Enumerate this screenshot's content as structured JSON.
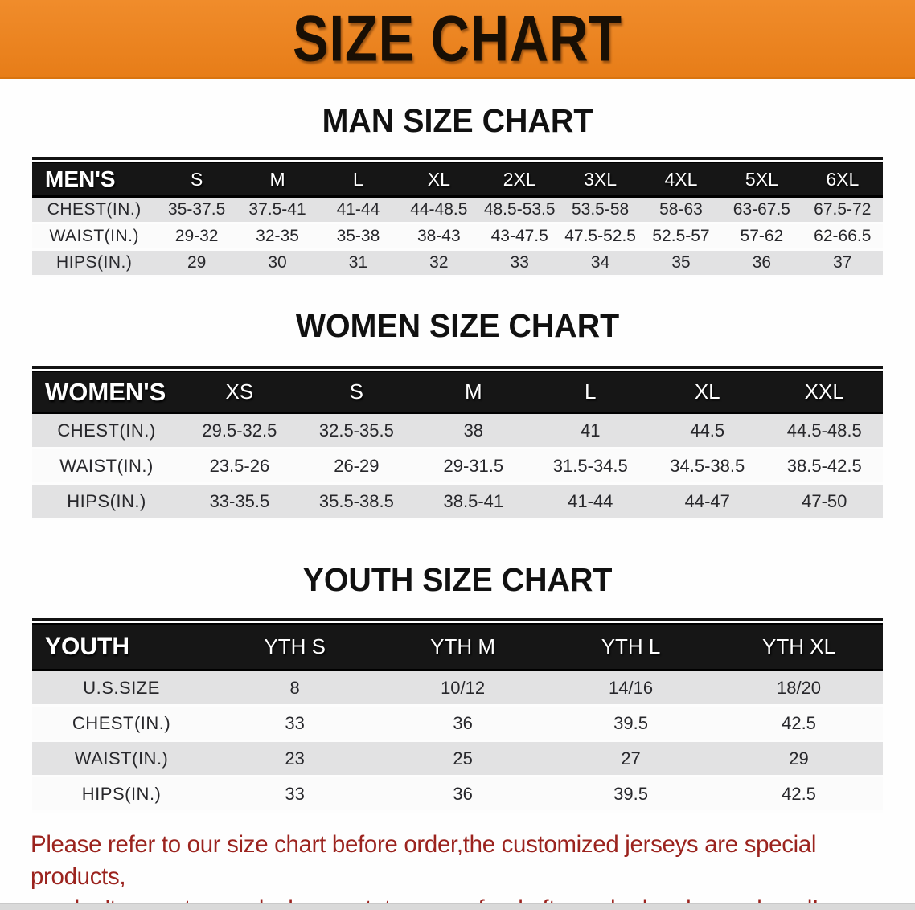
{
  "banner": {
    "title": "SIZE CHART",
    "bg_color": "#E8821E",
    "text_color": "#190F04"
  },
  "sections": [
    {
      "heading": "MAN SIZE CHART",
      "table": {
        "header_label": "MEN'S",
        "columns": [
          "S",
          "M",
          "L",
          "XL",
          "2XL",
          "3XL",
          "4XL",
          "5XL",
          "6XL"
        ],
        "rows": [
          {
            "label": "CHEST(IN.)",
            "values": [
              "35-37.5",
              "37.5-41",
              "41-44",
              "44-48.5",
              "48.5-53.5",
              "53.5-58",
              "58-63",
              "63-67.5",
              "67.5-72"
            ]
          },
          {
            "label": "WAIST(IN.)",
            "values": [
              "29-32",
              "32-35",
              "35-38",
              "38-43",
              "43-47.5",
              "47.5-52.5",
              "52.5-57",
              "57-62",
              "62-66.5"
            ]
          },
          {
            "label": "HIPS(IN.)",
            "values": [
              "29",
              "30",
              "31",
              "32",
              "33",
              "34",
              "35",
              "36",
              "37"
            ]
          }
        ]
      }
    },
    {
      "heading": "WOMEN SIZE CHART",
      "table": {
        "header_label": "WOMEN'S",
        "columns": [
          "XS",
          "S",
          "M",
          "L",
          "XL",
          "XXL"
        ],
        "rows": [
          {
            "label": "CHEST(IN.)",
            "values": [
              "29.5-32.5",
              "32.5-35.5",
              "38",
              "41",
              "44.5",
              "44.5-48.5"
            ]
          },
          {
            "label": "WAIST(IN.)",
            "values": [
              "23.5-26",
              "26-29",
              "29-31.5",
              "31.5-34.5",
              "34.5-38.5",
              "38.5-42.5"
            ]
          },
          {
            "label": "HIPS(IN.)",
            "values": [
              "33-35.5",
              "35.5-38.5",
              "38.5-41",
              "41-44",
              "44-47",
              "47-50"
            ]
          }
        ]
      }
    },
    {
      "heading": "YOUTH SIZE CHART",
      "table": {
        "header_label": "YOUTH",
        "columns": [
          "YTH S",
          "YTH M",
          "YTH L",
          "YTH XL"
        ],
        "rows": [
          {
            "label": "U.S.SIZE",
            "values": [
              "8",
              "10/12",
              "14/16",
              "18/20"
            ]
          },
          {
            "label": "CHEST(IN.)",
            "values": [
              "33",
              "36",
              "39.5",
              "42.5"
            ]
          },
          {
            "label": "WAIST(IN.)",
            "values": [
              "23",
              "25",
              "27",
              "29"
            ]
          },
          {
            "label": "HIPS(IN.)",
            "values": [
              "33",
              "36",
              "39.5",
              "42.5"
            ]
          }
        ]
      }
    }
  ],
  "footer": {
    "line1": "Please refer to our size chart before order,the customized jerseys are special products,",
    "line2": "we don't accept cancel, change, teturn or refund after order has been placed!",
    "text_color": "#9B231E"
  }
}
